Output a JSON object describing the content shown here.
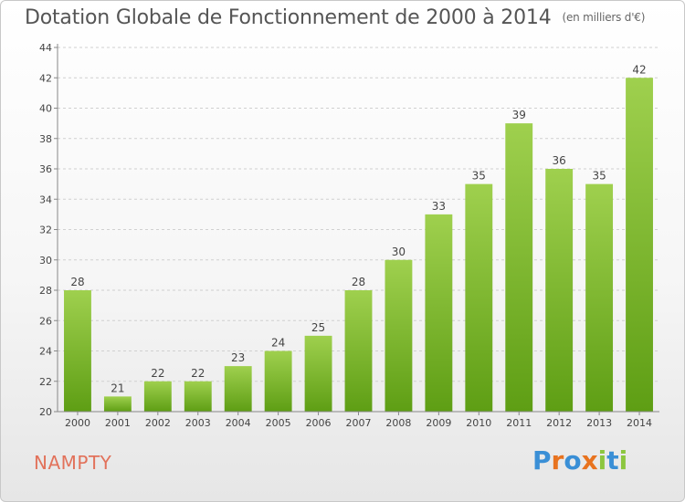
{
  "chart_data": {
    "type": "bar",
    "title": "Dotation Globale de Fonctionnement de 2000 à 2014",
    "subtitle": "(en milliers d'€)",
    "categories": [
      "2000",
      "2001",
      "2002",
      "2003",
      "2004",
      "2005",
      "2006",
      "2007",
      "2008",
      "2009",
      "2010",
      "2011",
      "2012",
      "2013",
      "2014"
    ],
    "values": [
      28,
      21,
      22,
      22,
      23,
      24,
      25,
      28,
      30,
      33,
      35,
      39,
      36,
      35,
      42
    ],
    "ylim": [
      20,
      44
    ],
    "yticks": [
      "20",
      "22",
      "24",
      "26",
      "28",
      "30",
      "32",
      "34",
      "36",
      "38",
      "40",
      "42",
      "44"
    ],
    "grid": true,
    "bar_color_top": "#9fd04e",
    "bar_color_bottom": "#5e9e14"
  },
  "commune": "NAMPTY",
  "logo": {
    "letters": [
      "P",
      "r",
      "o",
      "x",
      "i",
      "t",
      "i"
    ],
    "colors": [
      "#3a8fd6",
      "#e8731f",
      "#3a8fd6",
      "#e8731f",
      "#8cc63f",
      "#3a8fd6",
      "#8cc63f"
    ]
  },
  "colors": {
    "title": "#555555",
    "commune": "#e2725b"
  }
}
